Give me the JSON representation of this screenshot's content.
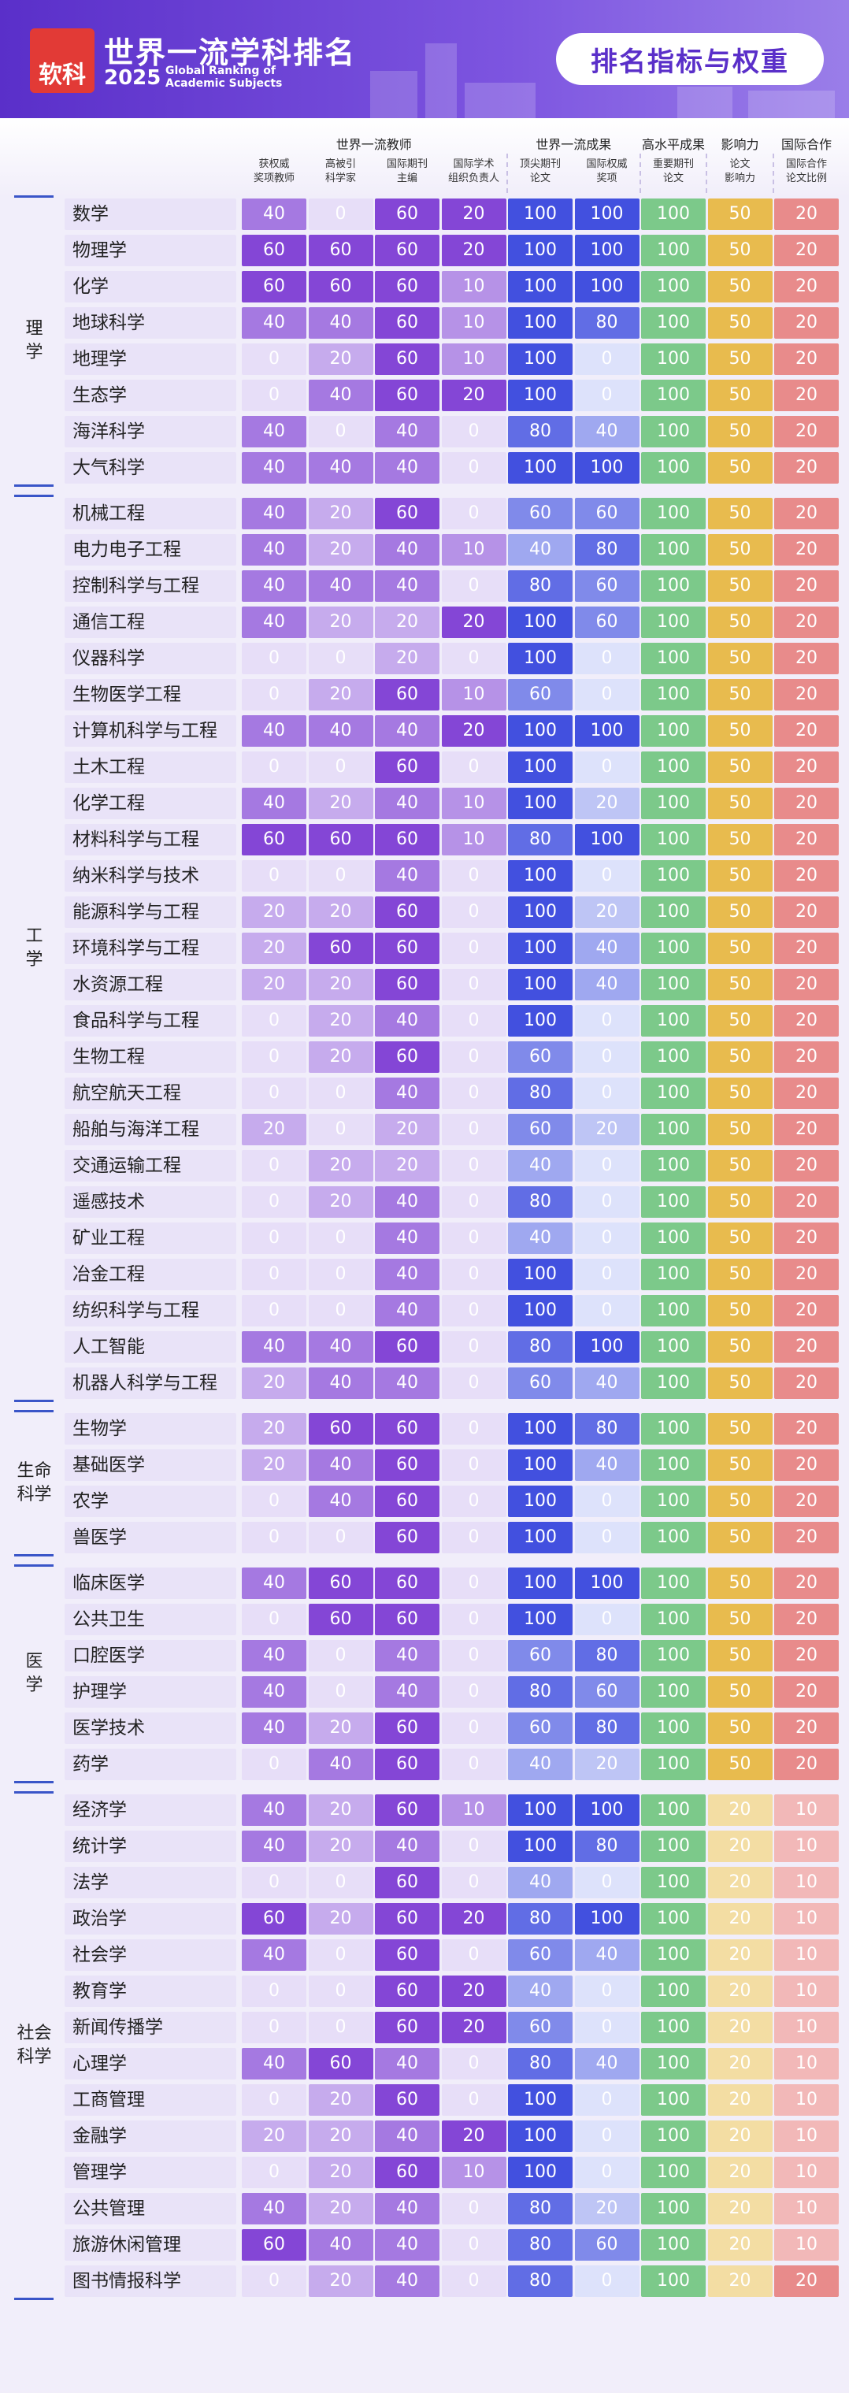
{
  "header": {
    "logo": "软科",
    "title": "世界一流学科排名",
    "year": "2025",
    "subtitle": "Global Ranking of Academic Subjects",
    "button": "排名指标与权重"
  },
  "table": {
    "column_groups": [
      {
        "label": "世界一流教师",
        "colors": [
          "#e7def8",
          "#8446d6"
        ],
        "columns": [
          "获权威\n奖项教师",
          "高被引\n科学家",
          "国际期刊\n主编",
          "国际学术\n组织负责人"
        ]
      },
      {
        "label": "世界一流成果",
        "colors": [
          "#dde2fb",
          "#4250df"
        ],
        "columns": [
          "顶尖期刊\n论文",
          "国际权威\n奖项"
        ]
      },
      {
        "label": "高水平成果",
        "colors": [
          "#e3f4e6",
          "#7cc98a"
        ],
        "columns": [
          "重要期刊\n论文"
        ]
      },
      {
        "label": "影响力",
        "colors": [
          "#fbf3dc",
          "#e8bb4e"
        ],
        "columns": [
          "论文\n影响力"
        ]
      },
      {
        "label": "国际合作",
        "colors": [
          "#fbe4e4",
          "#e88b8b"
        ],
        "columns": [
          "国际合作\n论文比例"
        ]
      }
    ],
    "groups": [
      {
        "name": "理学",
        "rows": [
          {
            "name": "数学",
            "values": [
              40,
              0,
              60,
              20,
              100,
              100,
              100,
              50,
              20
            ]
          },
          {
            "name": "物理学",
            "values": [
              60,
              60,
              60,
              20,
              100,
              100,
              100,
              50,
              20
            ]
          },
          {
            "name": "化学",
            "values": [
              60,
              60,
              60,
              10,
              100,
              100,
              100,
              50,
              20
            ]
          },
          {
            "name": "地球科学",
            "values": [
              40,
              40,
              60,
              10,
              100,
              80,
              100,
              50,
              20
            ]
          },
          {
            "name": "地理学",
            "values": [
              0,
              20,
              60,
              10,
              100,
              0,
              100,
              50,
              20
            ]
          },
          {
            "name": "生态学",
            "values": [
              0,
              40,
              60,
              20,
              100,
              0,
              100,
              50,
              20
            ]
          },
          {
            "name": "海洋科学",
            "values": [
              40,
              0,
              40,
              0,
              80,
              40,
              100,
              50,
              20
            ]
          },
          {
            "name": "大气科学",
            "values": [
              40,
              40,
              40,
              0,
              100,
              100,
              100,
              50,
              20
            ]
          }
        ]
      },
      {
        "name": "工学",
        "rows": [
          {
            "name": "机械工程",
            "values": [
              40,
              20,
              60,
              0,
              60,
              60,
              100,
              50,
              20
            ]
          },
          {
            "name": "电力电子工程",
            "values": [
              40,
              20,
              40,
              10,
              40,
              80,
              100,
              50,
              20
            ]
          },
          {
            "name": "控制科学与工程",
            "values": [
              40,
              40,
              40,
              0,
              80,
              60,
              100,
              50,
              20
            ]
          },
          {
            "name": "通信工程",
            "values": [
              40,
              20,
              20,
              20,
              100,
              60,
              100,
              50,
              20
            ]
          },
          {
            "name": "仪器科学",
            "values": [
              0,
              0,
              20,
              0,
              100,
              0,
              100,
              50,
              20
            ]
          },
          {
            "name": "生物医学工程",
            "values": [
              0,
              20,
              60,
              10,
              60,
              0,
              100,
              50,
              20
            ]
          },
          {
            "name": "计算机科学与工程",
            "values": [
              40,
              40,
              40,
              20,
              100,
              100,
              100,
              50,
              20
            ]
          },
          {
            "name": "土木工程",
            "values": [
              0,
              0,
              60,
              0,
              100,
              0,
              100,
              50,
              20
            ]
          },
          {
            "name": "化学工程",
            "values": [
              40,
              20,
              40,
              10,
              100,
              20,
              100,
              50,
              20
            ]
          },
          {
            "name": "材料科学与工程",
            "values": [
              60,
              60,
              60,
              10,
              80,
              100,
              100,
              50,
              20
            ]
          },
          {
            "name": "纳米科学与技术",
            "values": [
              0,
              0,
              40,
              0,
              100,
              0,
              100,
              50,
              20
            ]
          },
          {
            "name": "能源科学与工程",
            "values": [
              20,
              20,
              60,
              0,
              100,
              20,
              100,
              50,
              20
            ]
          },
          {
            "name": "环境科学与工程",
            "values": [
              20,
              60,
              60,
              0,
              100,
              40,
              100,
              50,
              20
            ]
          },
          {
            "name": "水资源工程",
            "values": [
              20,
              20,
              60,
              0,
              100,
              40,
              100,
              50,
              20
            ]
          },
          {
            "name": "食品科学与工程",
            "values": [
              0,
              20,
              40,
              0,
              100,
              0,
              100,
              50,
              20
            ]
          },
          {
            "name": "生物工程",
            "values": [
              0,
              20,
              60,
              0,
              60,
              0,
              100,
              50,
              20
            ]
          },
          {
            "name": "航空航天工程",
            "values": [
              0,
              0,
              40,
              0,
              80,
              0,
              100,
              50,
              20
            ]
          },
          {
            "name": "船舶与海洋工程",
            "values": [
              20,
              0,
              20,
              0,
              60,
              20,
              100,
              50,
              20
            ]
          },
          {
            "name": "交通运输工程",
            "values": [
              0,
              20,
              20,
              0,
              40,
              0,
              100,
              50,
              20
            ]
          },
          {
            "name": "遥感技术",
            "values": [
              0,
              20,
              40,
              0,
              80,
              0,
              100,
              50,
              20
            ]
          },
          {
            "name": "矿业工程",
            "values": [
              0,
              0,
              40,
              0,
              40,
              0,
              100,
              50,
              20
            ]
          },
          {
            "name": "冶金工程",
            "values": [
              0,
              0,
              40,
              0,
              100,
              0,
              100,
              50,
              20
            ]
          },
          {
            "name": "纺织科学与工程",
            "values": [
              0,
              0,
              40,
              0,
              100,
              0,
              100,
              50,
              20
            ]
          },
          {
            "name": "人工智能",
            "values": [
              40,
              40,
              60,
              0,
              80,
              100,
              100,
              50,
              20
            ]
          },
          {
            "name": "机器人科学与工程",
            "values": [
              20,
              40,
              40,
              0,
              60,
              40,
              100,
              50,
              20
            ]
          }
        ]
      },
      {
        "name": "生命科学",
        "rows": [
          {
            "name": "生物学",
            "values": [
              20,
              60,
              60,
              0,
              100,
              80,
              100,
              50,
              20
            ]
          },
          {
            "name": "基础医学",
            "values": [
              20,
              40,
              60,
              0,
              100,
              40,
              100,
              50,
              20
            ]
          },
          {
            "name": "农学",
            "values": [
              0,
              40,
              60,
              0,
              100,
              0,
              100,
              50,
              20
            ]
          },
          {
            "name": "兽医学",
            "values": [
              0,
              0,
              60,
              0,
              100,
              0,
              100,
              50,
              20
            ]
          }
        ]
      },
      {
        "name": "医学",
        "rows": [
          {
            "name": "临床医学",
            "values": [
              40,
              60,
              60,
              0,
              100,
              100,
              100,
              50,
              20
            ]
          },
          {
            "name": "公共卫生",
            "values": [
              0,
              60,
              60,
              0,
              100,
              0,
              100,
              50,
              20
            ]
          },
          {
            "name": "口腔医学",
            "values": [
              40,
              0,
              40,
              0,
              60,
              80,
              100,
              50,
              20
            ]
          },
          {
            "name": "护理学",
            "values": [
              40,
              0,
              40,
              0,
              80,
              60,
              100,
              50,
              20
            ]
          },
          {
            "name": "医学技术",
            "values": [
              40,
              20,
              60,
              0,
              60,
              80,
              100,
              50,
              20
            ]
          },
          {
            "name": "药学",
            "values": [
              0,
              40,
              60,
              0,
              40,
              20,
              100,
              50,
              20
            ]
          }
        ]
      },
      {
        "name": "社会科学",
        "rows": [
          {
            "name": "经济学",
            "values": [
              40,
              20,
              60,
              10,
              100,
              100,
              100,
              20,
              10
            ]
          },
          {
            "name": "统计学",
            "values": [
              40,
              20,
              40,
              0,
              100,
              80,
              100,
              20,
              10
            ]
          },
          {
            "name": "法学",
            "values": [
              0,
              0,
              60,
              0,
              40,
              0,
              100,
              20,
              10
            ]
          },
          {
            "name": "政治学",
            "values": [
              60,
              20,
              60,
              20,
              80,
              100,
              100,
              20,
              10
            ]
          },
          {
            "name": "社会学",
            "values": [
              40,
              0,
              60,
              0,
              60,
              40,
              100,
              20,
              10
            ]
          },
          {
            "name": "教育学",
            "values": [
              0,
              0,
              60,
              20,
              40,
              0,
              100,
              20,
              10
            ]
          },
          {
            "name": "新闻传播学",
            "values": [
              0,
              0,
              60,
              20,
              60,
              0,
              100,
              20,
              10
            ]
          },
          {
            "name": "心理学",
            "values": [
              40,
              60,
              40,
              0,
              80,
              40,
              100,
              20,
              10
            ]
          },
          {
            "name": "工商管理",
            "values": [
              0,
              20,
              60,
              0,
              100,
              0,
              100,
              20,
              10
            ]
          },
          {
            "name": "金融学",
            "values": [
              20,
              20,
              40,
              20,
              100,
              0,
              100,
              20,
              10
            ]
          },
          {
            "name": "管理学",
            "values": [
              0,
              20,
              60,
              10,
              100,
              0,
              100,
              20,
              10
            ]
          },
          {
            "name": "公共管理",
            "values": [
              40,
              20,
              40,
              0,
              80,
              20,
              100,
              20,
              10
            ]
          },
          {
            "name": "旅游休闲管理",
            "values": [
              60,
              40,
              40,
              0,
              80,
              60,
              100,
              20,
              10
            ]
          },
          {
            "name": "图书情报科学",
            "values": [
              0,
              20,
              40,
              0,
              80,
              0,
              100,
              20,
              20
            ]
          }
        ]
      }
    ]
  }
}
